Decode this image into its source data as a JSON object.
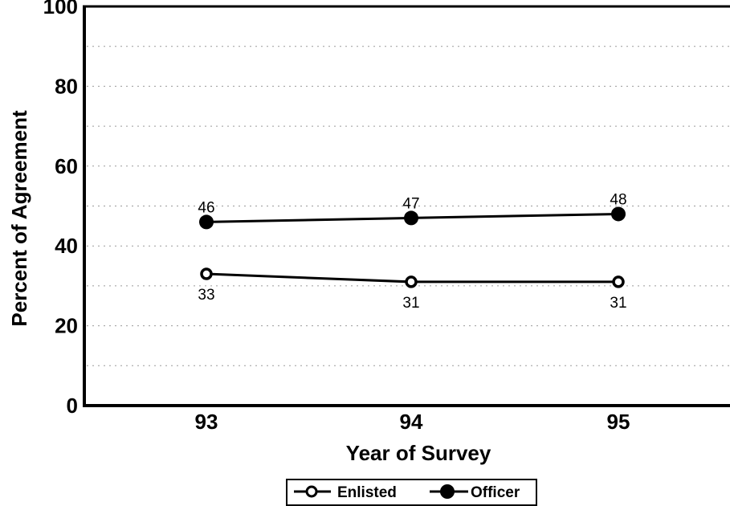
{
  "chart_data": {
    "type": "line",
    "xlabel": "Year of Survey",
    "ylabel": "Percent of Agreement",
    "categories": [
      "93",
      "94",
      "95"
    ],
    "ylim": [
      0,
      100
    ],
    "yticks": [
      "0",
      "20",
      "40",
      "60",
      "80",
      "100"
    ],
    "grid": true,
    "legend_position": "bottom",
    "series": [
      {
        "name": "Enlisted",
        "marker": "open-circle",
        "values": [
          33,
          31,
          31
        ],
        "labels": [
          "33",
          "31",
          "31"
        ],
        "label_position": "below",
        "color": "#000000"
      },
      {
        "name": "Officer",
        "marker": "filled-circle",
        "values": [
          46,
          47,
          48
        ],
        "labels": [
          "46",
          "47",
          "48"
        ],
        "label_position": "above",
        "color": "#000000"
      }
    ]
  }
}
